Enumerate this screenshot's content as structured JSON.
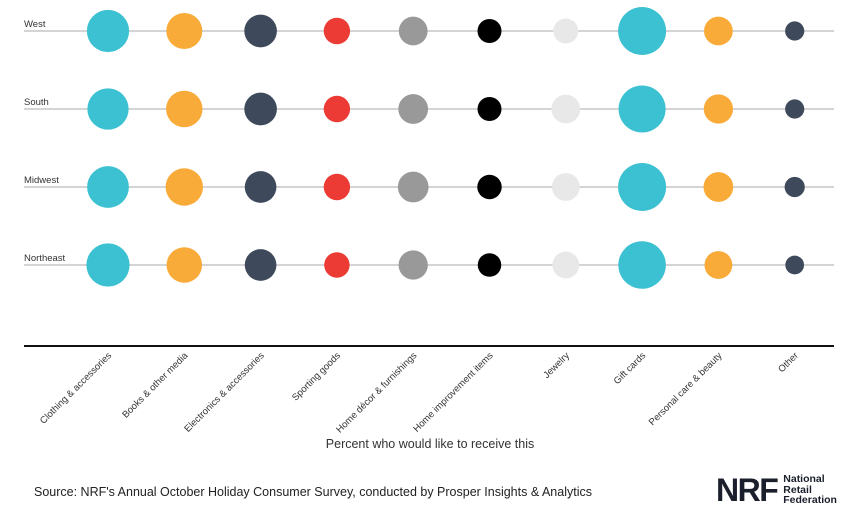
{
  "chart_data": {
    "type": "scatter",
    "title": "",
    "xlabel": "Percent who would like to receive this",
    "ylabel": "",
    "rows": [
      "West",
      "South",
      "Midwest",
      "Northeast"
    ],
    "categories": [
      "Clothing & accessories",
      "Books & other media",
      "Electronics & accessories",
      "Sporting goods",
      "Home décor & furnishings",
      "Home improvement items",
      "Jewelry",
      "Gift cards",
      "Personal care & beauty",
      "Other"
    ],
    "colors": [
      "#3cc1d2",
      "#f9ab3a",
      "#3e4a5b",
      "#ec3b35",
      "#999999",
      "#000000",
      "#e8e8e8",
      "#3cc1d2",
      "#f9ab3a",
      "#3e4a5b"
    ],
    "relative_size": [
      [
        0.88,
        0.75,
        0.68,
        0.55,
        0.6,
        0.5,
        0.52,
        1.0,
        0.6,
        0.4
      ],
      [
        0.86,
        0.76,
        0.68,
        0.55,
        0.62,
        0.5,
        0.6,
        0.98,
        0.61,
        0.4
      ],
      [
        0.87,
        0.78,
        0.66,
        0.55,
        0.64,
        0.51,
        0.58,
        1.0,
        0.62,
        0.42
      ],
      [
        0.9,
        0.74,
        0.66,
        0.53,
        0.61,
        0.49,
        0.56,
        0.99,
        0.58,
        0.39
      ]
    ]
  },
  "footer": {
    "source": "Source: NRF's Annual October Holiday Consumer Survey, conducted by Prosper Insights & Analytics",
    "logo_mark": "NRF",
    "logo_line1": "National",
    "logo_line2": "Retail",
    "logo_line3": "Federation"
  }
}
